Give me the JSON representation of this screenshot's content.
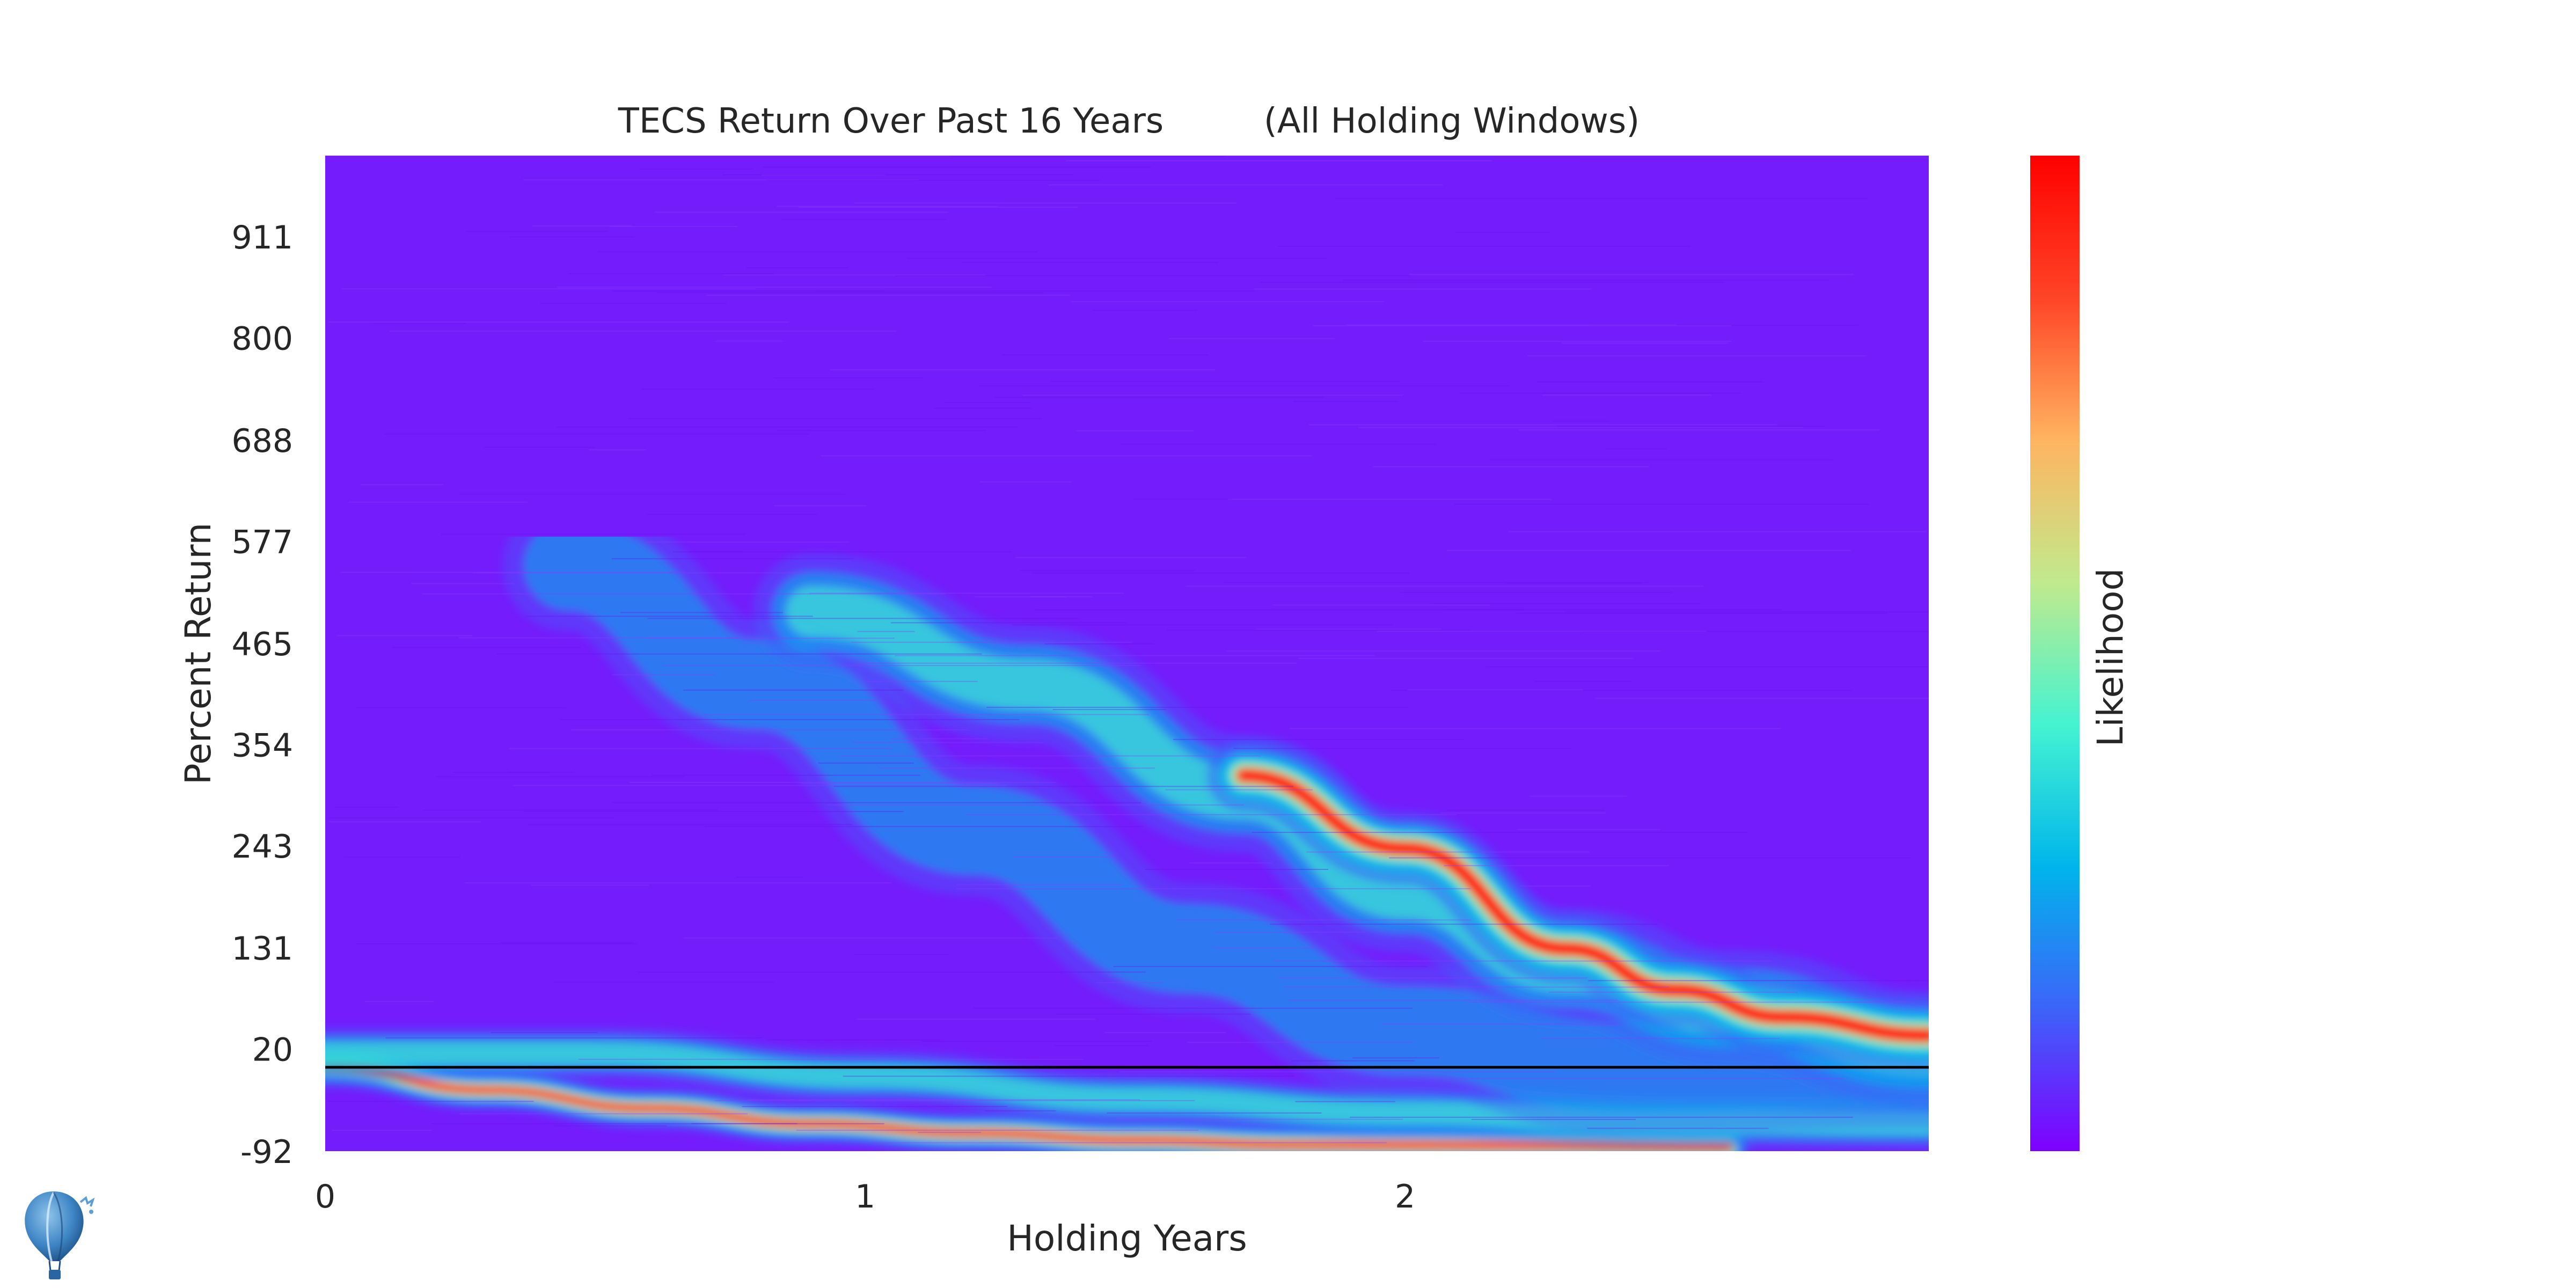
{
  "chart_data": {
    "type": "heatmap",
    "title": "TECS Return Over Past 16 Years",
    "subtitle": "(All Holding Windows)",
    "xlabel": "Holding Years",
    "ylabel": "Percent Return",
    "colorbar_label": "Likelihood",
    "x_range": [
      0,
      2.97
    ],
    "y_range": [
      -92,
      1000
    ],
    "x_ticks": [
      {
        "value": 0,
        "label": "0"
      },
      {
        "value": 1,
        "label": "1"
      },
      {
        "value": 2,
        "label": "2"
      }
    ],
    "y_ticks": [
      {
        "value": -92,
        "label": "-92"
      },
      {
        "value": 20,
        "label": "20"
      },
      {
        "value": 131,
        "label": "131"
      },
      {
        "value": 243,
        "label": "243"
      },
      {
        "value": 354,
        "label": "354"
      },
      {
        "value": 465,
        "label": "465"
      },
      {
        "value": 577,
        "label": "577"
      },
      {
        "value": 688,
        "label": "688"
      },
      {
        "value": 800,
        "label": "800"
      },
      {
        "value": 911,
        "label": "911"
      }
    ],
    "reference_line": {
      "y": 0
    },
    "colormap": "rainbow",
    "colormap_stops": [
      "#7f00ff",
      "#3d63f9",
      "#00b5eb",
      "#45f3d1",
      "#c1ea8d",
      "#ffb460",
      "#ff4426",
      "#ff0000"
    ],
    "background_color": "#741cfc",
    "reference_line_color": "#000000",
    "bands": [
      {
        "name": "main",
        "points": [
          [
            0,
            0
          ],
          [
            0.3,
            -25
          ],
          [
            0.6,
            -45
          ],
          [
            0.9,
            -62
          ],
          [
            1.2,
            -72
          ],
          [
            1.5,
            -80
          ],
          [
            1.8,
            -85
          ],
          [
            2.2,
            -86
          ],
          [
            2.6,
            -88
          ]
        ],
        "width": 14,
        "intensity": 1.0
      },
      {
        "name": "mid",
        "points": [
          [
            0,
            15
          ],
          [
            0.5,
            15
          ],
          [
            1.0,
            -10
          ],
          [
            1.5,
            -35
          ],
          [
            2.0,
            -50
          ],
          [
            2.5,
            -60
          ],
          [
            2.97,
            -62
          ]
        ],
        "width": 18,
        "intensity": 0.45
      },
      {
        "name": "b1",
        "points": [
          [
            0.45,
            550
          ],
          [
            0.8,
            420
          ],
          [
            1.2,
            260
          ],
          [
            1.6,
            130
          ],
          [
            2.0,
            40
          ],
          [
            2.4,
            0
          ],
          [
            2.97,
            5
          ]
        ],
        "width": 45,
        "intensity": 0.35
      },
      {
        "name": "b2",
        "points": [
          [
            0.9,
            500
          ],
          [
            1.3,
            420
          ],
          [
            1.7,
            300
          ],
          [
            2.0,
            190
          ],
          [
            2.3,
            110
          ],
          [
            2.6,
            65
          ],
          [
            2.97,
            20
          ]
        ],
        "width": 40,
        "intensity": 0.45
      },
      {
        "name": "b3",
        "points": [
          [
            1.7,
            320
          ],
          [
            2.0,
            240
          ],
          [
            2.3,
            130
          ],
          [
            2.5,
            85
          ],
          [
            2.7,
            55
          ],
          [
            2.97,
            35
          ]
        ],
        "width": 25,
        "intensity": 0.95
      }
    ]
  },
  "logo": {
    "name": "hot-air-balloon"
  }
}
